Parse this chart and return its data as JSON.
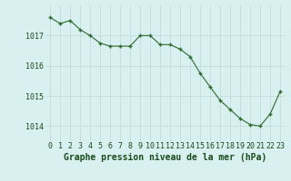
{
  "hours": [
    0,
    1,
    2,
    3,
    4,
    5,
    6,
    7,
    8,
    9,
    10,
    11,
    12,
    13,
    14,
    15,
    16,
    17,
    18,
    19,
    20,
    21,
    22,
    23
  ],
  "pressure": [
    1017.6,
    1017.4,
    1017.5,
    1017.2,
    1017.0,
    1016.75,
    1016.65,
    1016.65,
    1016.65,
    1017.0,
    1017.0,
    1016.7,
    1016.7,
    1016.55,
    1016.3,
    1015.75,
    1015.3,
    1014.85,
    1014.55,
    1014.25,
    1014.05,
    1014.0,
    1014.4,
    1015.15
  ],
  "line_color": "#2d6a2d",
  "marker": "+",
  "background_color": "#d8f0f0",
  "grid_color": "#c0d8d8",
  "ylabel_ticks": [
    1014,
    1015,
    1016,
    1017
  ],
  "xlabel": "Graphe pression niveau de la mer (hPa)",
  "ylim": [
    1013.5,
    1018.0
  ],
  "xlim": [
    -0.5,
    23.5
  ],
  "xlabel_fontsize": 7,
  "tick_fontsize": 6,
  "tick_color": "#1a4a1a",
  "line_color_hex": "#2d6a2d"
}
